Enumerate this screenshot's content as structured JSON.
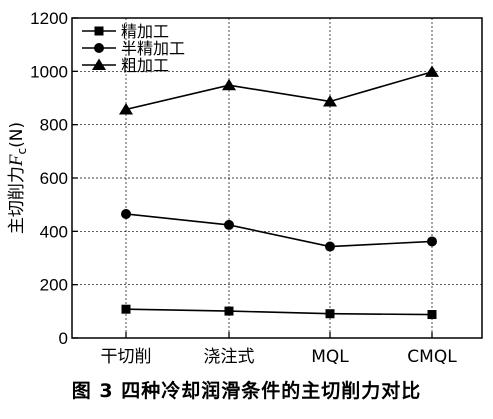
{
  "caption": "图 3   四种冷却润滑条件的主切削力对比",
  "chart_data": {
    "type": "line",
    "categories": [
      "干切削",
      "浇注式",
      "MQL",
      "CMQL"
    ],
    "series": [
      {
        "name": "精加工",
        "marker": "square",
        "values": [
          108,
          101,
          91,
          88
        ]
      },
      {
        "name": "半精加工",
        "marker": "circle",
        "values": [
          465,
          424,
          343,
          362
        ]
      },
      {
        "name": "粗加工",
        "marker": "triangle",
        "values": [
          857,
          948,
          887,
          998
        ]
      }
    ],
    "ylabel_prefix": "主切削力",
    "ylabel_symbol": "F",
    "ylabel_sub": "c",
    "ylabel_unit": "(N)",
    "ylim": [
      0,
      1200
    ],
    "yticks": [
      0,
      200,
      400,
      600,
      800,
      1000,
      1200
    ],
    "grid": "dashed",
    "legend_position": "top-left",
    "color": "#000000"
  }
}
